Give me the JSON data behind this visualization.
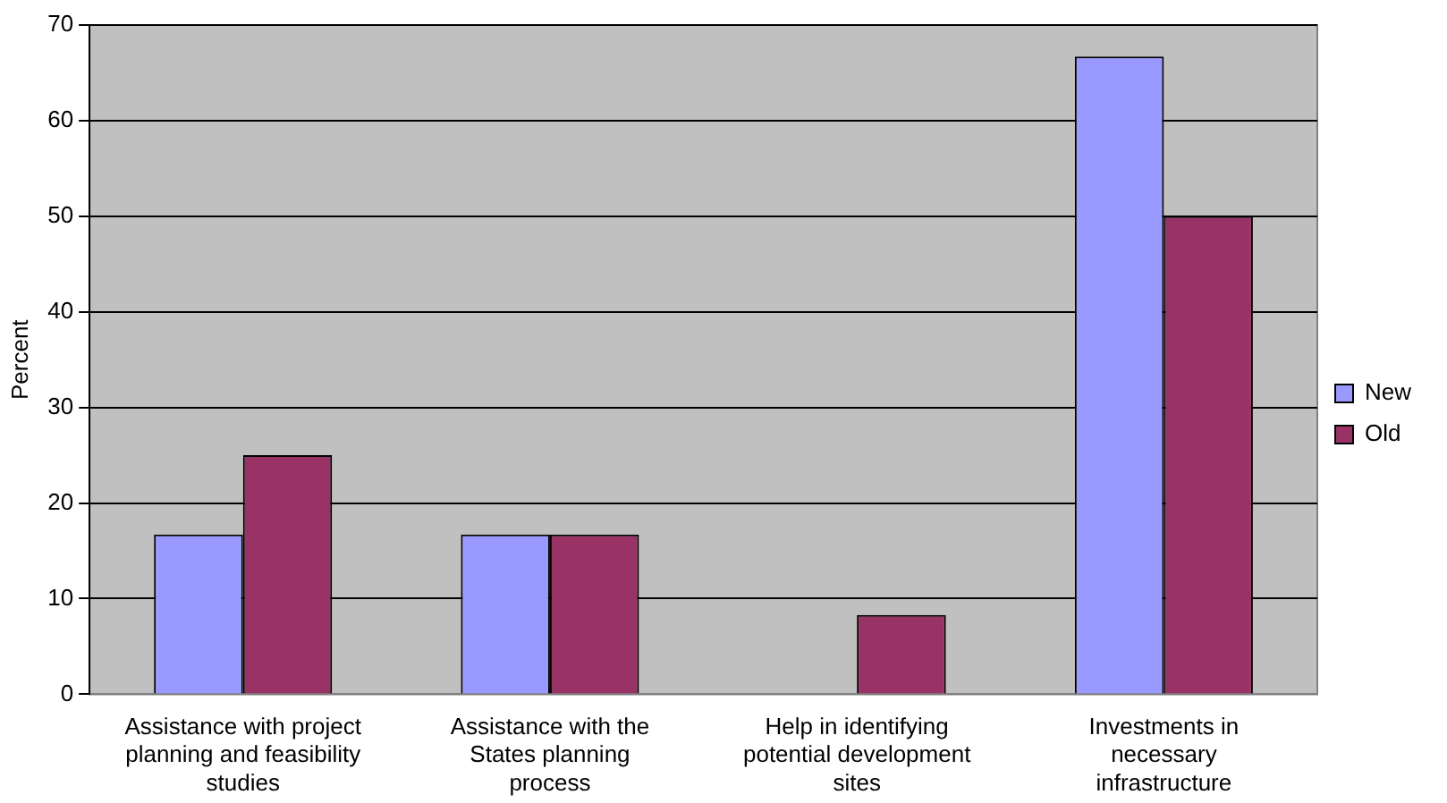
{
  "chart_data": {
    "type": "bar",
    "ylabel": "Percent",
    "categories": [
      "Assistance with project planning and feasibility studies",
      "Assistance with the States planning process",
      "Help in identifying potential development sites",
      "Investments in necessary infrastructure"
    ],
    "series": [
      {
        "name": "New",
        "color": "#9999ff",
        "values": [
          16.7,
          16.7,
          0,
          66.7
        ]
      },
      {
        "name": "Old",
        "color": "#993366",
        "values": [
          25,
          16.7,
          8.3,
          50
        ]
      }
    ],
    "ylim": [
      0,
      70
    ],
    "yticks": [
      0,
      10,
      20,
      30,
      40,
      50,
      60,
      70
    ],
    "grid": "y",
    "legend": "right"
  }
}
